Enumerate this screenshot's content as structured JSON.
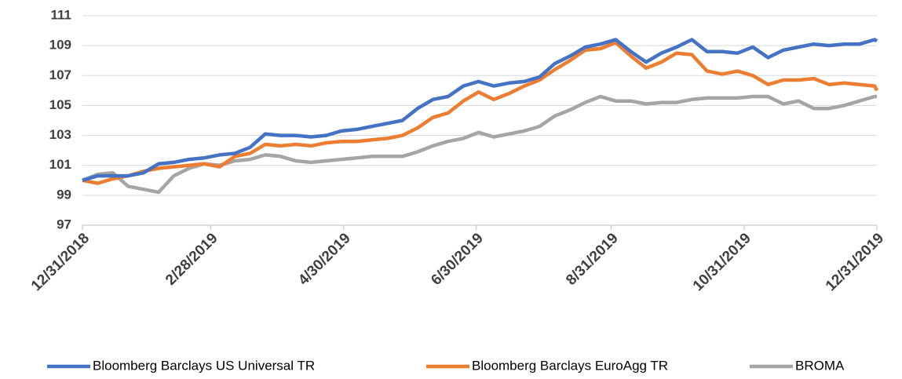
{
  "chart_data": {
    "type": "line",
    "x": [
      "12/31/2018",
      "1/7/2019",
      "1/14/2019",
      "1/21/2019",
      "1/28/2019",
      "2/4/2019",
      "2/11/2019",
      "2/18/2019",
      "2/25/2019",
      "3/4/2019",
      "3/11/2019",
      "3/18/2019",
      "3/25/2019",
      "4/1/2019",
      "4/8/2019",
      "4/15/2019",
      "4/22/2019",
      "4/29/2019",
      "5/6/2019",
      "5/13/2019",
      "5/20/2019",
      "5/27/2019",
      "6/3/2019",
      "6/10/2019",
      "6/17/2019",
      "6/24/2019",
      "7/1/2019",
      "7/8/2019",
      "7/15/2019",
      "7/22/2019",
      "7/29/2019",
      "8/5/2019",
      "8/12/2019",
      "8/19/2019",
      "8/26/2019",
      "9/2/2019",
      "9/9/2019",
      "9/16/2019",
      "9/23/2019",
      "9/30/2019",
      "10/7/2019",
      "10/14/2019",
      "10/21/2019",
      "10/28/2019",
      "11/4/2019",
      "11/11/2019",
      "11/18/2019",
      "11/25/2019",
      "12/2/2019",
      "12/9/2019",
      "12/16/2019",
      "12/23/2019",
      "12/30/2019",
      "12/31/2019"
    ],
    "series": [
      {
        "name": "Bloomberg Barclays US Universal TR",
        "color": "#4472c4",
        "values": [
          100,
          100.3,
          100.3,
          100.3,
          100.5,
          101.1,
          101.2,
          101.4,
          101.5,
          101.7,
          101.8,
          102.2,
          103.1,
          103.0,
          103.0,
          102.9,
          103.0,
          103.3,
          103.4,
          103.6,
          103.8,
          104.0,
          104.8,
          105.4,
          105.6,
          106.3,
          106.6,
          106.3,
          106.5,
          106.6,
          106.9,
          107.8,
          108.3,
          108.9,
          109.1,
          109.4,
          108.6,
          107.9,
          108.5,
          108.9,
          109.4,
          108.6,
          108.6,
          108.5,
          108.9,
          108.2,
          108.7,
          108.9,
          109.1,
          109.0,
          109.1,
          109.1,
          109.4,
          109.3
        ]
      },
      {
        "name": "Bloomberg Barclays EuroAgg TR",
        "color": "#ed7d31",
        "values": [
          100,
          99.8,
          100.1,
          100.3,
          100.6,
          100.8,
          100.9,
          101.0,
          101.1,
          100.9,
          101.6,
          101.8,
          102.4,
          102.3,
          102.4,
          102.3,
          102.5,
          102.6,
          102.6,
          102.7,
          102.8,
          103.0,
          103.5,
          104.2,
          104.5,
          105.3,
          105.9,
          105.4,
          105.8,
          106.3,
          106.7,
          107.4,
          108.0,
          108.7,
          108.8,
          109.2,
          108.3,
          107.5,
          107.9,
          108.5,
          108.4,
          107.3,
          107.1,
          107.3,
          107.0,
          106.4,
          106.7,
          106.7,
          106.8,
          106.4,
          106.5,
          106.4,
          106.3,
          106.0
        ]
      },
      {
        "name": "BROMA",
        "color": "#a5a5a5",
        "values": [
          100,
          100.4,
          100.5,
          99.6,
          99.4,
          99.2,
          100.3,
          100.8,
          101.1,
          101.0,
          101.3,
          101.4,
          101.7,
          101.6,
          101.3,
          101.2,
          101.3,
          101.4,
          101.5,
          101.6,
          101.6,
          101.6,
          101.9,
          102.3,
          102.6,
          102.8,
          103.2,
          102.9,
          103.1,
          103.3,
          103.6,
          104.3,
          104.7,
          105.2,
          105.6,
          105.3,
          105.3,
          105.1,
          105.2,
          105.2,
          105.4,
          105.5,
          105.5,
          105.5,
          105.6,
          105.6,
          105.1,
          105.3,
          104.8,
          104.8,
          105.0,
          105.3,
          105.6,
          105.6
        ]
      }
    ],
    "xlim": [
      "12/31/2018",
      "12/31/2019"
    ],
    "xticks": [
      "12/31/2018",
      "2/28/2019",
      "4/30/2019",
      "6/30/2019",
      "8/31/2019",
      "10/31/2019",
      "12/31/2019"
    ],
    "ylim": [
      97,
      111
    ],
    "yticks": [
      97,
      99,
      101,
      103,
      105,
      107,
      109,
      111
    ],
    "grid": true,
    "legend": "bottom"
  }
}
